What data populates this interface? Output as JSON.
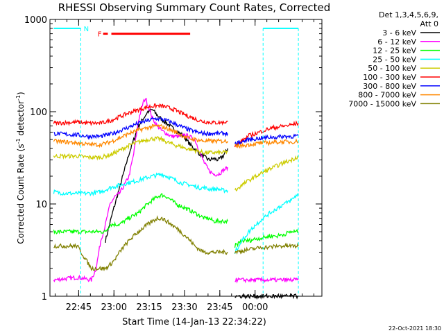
{
  "chart_data": {
    "type": "line",
    "title": "RHESSI Observing Summary Count Rates, Corrected",
    "xlabel": "Start Time (14-Jan-13 22:34:22)",
    "ylabel_parts": {
      "a": "Corrected Count Rate (s",
      "sup1": "-1",
      "b": " detector",
      "sup2": "-1",
      "c": ")"
    },
    "ylabel": "Corrected Count Rate (s-1 detector-1)",
    "y_scale": "log",
    "ylim": [
      1,
      1000
    ],
    "yticks": [
      "1",
      "10",
      "100",
      "1000"
    ],
    "xlim_minutes": [
      -1.6,
      114
    ],
    "xticks": [
      {
        "label": "22:45",
        "min": 10.6
      },
      {
        "label": "23:00",
        "min": 25.6
      },
      {
        "label": "23:15",
        "min": 40.6
      },
      {
        "label": "23:30",
        "min": 55.6
      },
      {
        "label": "23:45",
        "min": 70.6
      },
      {
        "label": "00:00",
        "min": 85.6
      }
    ],
    "legend_header": [
      "Det 1,3,4,5,6,9,",
      "Att 0"
    ],
    "legend_position": "right",
    "series": [
      {
        "name": "3 - 6 keV",
        "color": "#000000",
        "x": [
          0,
          10,
          20,
          22,
          25,
          28,
          32,
          36,
          40,
          42,
          44,
          46,
          48,
          50,
          52,
          55,
          58,
          62,
          66,
          68,
          70,
          72,
          74,
          75,
          76,
          76.5
        ],
        "y": [
          null,
          null,
          null,
          4,
          8,
          15,
          35,
          70,
          100,
          105,
          92,
          82,
          75,
          68,
          62,
          55,
          44,
          35,
          30,
          31,
          30,
          33,
          40,
          null,
          null,
          null
        ]
      },
      {
        "name": "6 - 12 keV",
        "color": "#ff00ff",
        "x": [
          0,
          10,
          16,
          18,
          20,
          22,
          24,
          26,
          28,
          30,
          32,
          34,
          36,
          38,
          39,
          40,
          42,
          44,
          46,
          48,
          50,
          52,
          54,
          56,
          58,
          60,
          62,
          64,
          66,
          68,
          70,
          72,
          74,
          75,
          76,
          76.5
        ],
        "y": [
          1.5,
          1.6,
          1.5,
          2,
          4,
          6,
          10,
          12,
          13,
          16,
          20,
          35,
          80,
          125,
          140,
          120,
          85,
          70,
          62,
          58,
          54,
          54,
          54,
          56,
          53,
          50,
          37,
          28,
          23,
          21,
          21,
          23,
          25,
          null,
          null,
          null
        ]
      },
      {
        "name": "12 - 25 keV",
        "color": "#00ff00",
        "x": [
          0,
          5,
          10,
          16,
          20,
          22,
          24,
          26,
          28,
          30,
          32,
          34,
          36,
          38,
          40,
          42,
          44,
          46,
          48,
          50,
          52,
          54,
          56,
          58,
          60,
          62,
          64,
          66,
          68,
          70,
          72,
          74,
          75,
          76,
          76.5
        ],
        "y": [
          5,
          5,
          5,
          5,
          5,
          5,
          6,
          6,
          6,
          6.5,
          7,
          7.5,
          8,
          9,
          10,
          11,
          12,
          12.5,
          12,
          11,
          10,
          9.5,
          9,
          8.5,
          8,
          7.5,
          7,
          7,
          6.5,
          6.5,
          6.5,
          6.5,
          null,
          null,
          null
        ]
      },
      {
        "name": "25 - 50 keV",
        "color": "#00ffff",
        "x": [
          0,
          5,
          10,
          15,
          20,
          24,
          28,
          32,
          36,
          40,
          42,
          44,
          46,
          48,
          50,
          52,
          54,
          56,
          58,
          60,
          62,
          64,
          66,
          68,
          70,
          72,
          74,
          75,
          76,
          76.5
        ],
        "y": [
          13.5,
          13,
          13,
          13,
          13.5,
          15,
          16,
          17,
          18,
          19.5,
          20,
          20.5,
          21,
          20,
          19,
          18,
          17,
          16.5,
          16,
          15.5,
          15,
          15,
          14.5,
          14.5,
          14.5,
          14,
          14,
          null,
          null,
          null
        ]
      },
      {
        "name": "50 - 100 keV",
        "color": "#cccc00",
        "x": [
          0,
          5,
          10,
          15,
          20,
          24,
          28,
          32,
          36,
          40,
          42,
          44,
          46,
          48,
          50,
          52,
          54,
          56,
          58,
          60,
          62,
          64,
          66,
          68,
          70,
          72,
          74,
          75,
          76,
          76.5
        ],
        "y": [
          33,
          33,
          33,
          32,
          32,
          34,
          38,
          43,
          47,
          50,
          51,
          51,
          50,
          47,
          45,
          43,
          42,
          40,
          39,
          38,
          37,
          36,
          36,
          36,
          36,
          36,
          37,
          null,
          null,
          null
        ]
      },
      {
        "name": "100 - 300 keV",
        "color": "#ff0000",
        "x": [
          0,
          5,
          10,
          15,
          20,
          24,
          28,
          32,
          36,
          40,
          42,
          44,
          46,
          48,
          50,
          52,
          54,
          56,
          58,
          60,
          62,
          64,
          66,
          68,
          70,
          72,
          74,
          75,
          76,
          76.5
        ],
        "y": [
          75,
          76,
          77,
          75,
          75,
          80,
          88,
          97,
          105,
          112,
          115,
          116,
          115,
          112,
          108,
          103,
          97,
          92,
          88,
          84,
          80,
          78,
          77,
          76,
          76,
          77,
          78,
          null,
          null,
          null
        ]
      },
      {
        "name": "300 - 800 keV",
        "color": "#0000ff",
        "x": [
          0,
          5,
          10,
          15,
          20,
          24,
          28,
          32,
          36,
          40,
          42,
          44,
          46,
          48,
          50,
          52,
          54,
          56,
          58,
          60,
          62,
          64,
          66,
          68,
          70,
          72,
          74,
          75,
          76,
          76.5
        ],
        "y": [
          58,
          57,
          56,
          54,
          54,
          57,
          62,
          68,
          75,
          80,
          83,
          84,
          83,
          80,
          77,
          73,
          69,
          66,
          63,
          61,
          59,
          58,
          58,
          58,
          58,
          58,
          58,
          null,
          null,
          null
        ]
      },
      {
        "name": "800 - 7000 keV",
        "color": "#ff8800",
        "x": [
          0,
          5,
          10,
          15,
          20,
          24,
          28,
          32,
          36,
          40,
          42,
          44,
          46,
          48,
          50,
          52,
          54,
          56,
          58,
          60,
          62,
          64,
          66,
          68,
          70,
          72,
          74,
          75,
          76,
          76.5
        ],
        "y": [
          48,
          47,
          46,
          44,
          44,
          47,
          52,
          58,
          63,
          67,
          69,
          70,
          69,
          66,
          63,
          60,
          56,
          53,
          51,
          50,
          49,
          48,
          48,
          48,
          48,
          48,
          48,
          null,
          null,
          null
        ]
      },
      {
        "name": "7000 - 15000 keV",
        "color": "#808000",
        "x": [
          0,
          5,
          10,
          16,
          20,
          22,
          24,
          26,
          28,
          30,
          32,
          34,
          36,
          38,
          40,
          42,
          44,
          46,
          48,
          50,
          52,
          54,
          56,
          58,
          60,
          62,
          64,
          66,
          68,
          70,
          72,
          74,
          75,
          76,
          76.5
        ],
        "y": [
          3.5,
          3.5,
          3.5,
          2,
          2,
          2,
          2.2,
          2.5,
          3,
          3.5,
          4,
          4.5,
          5,
          5.5,
          6,
          6.5,
          7,
          7,
          6.5,
          6,
          5.5,
          5,
          4.5,
          4,
          3.5,
          3.2,
          3,
          3,
          3,
          3,
          3,
          3,
          null,
          null,
          null
        ]
      }
    ],
    "series_after_gap": {
      "x": [
        77,
        80,
        83,
        86,
        89,
        92,
        95,
        98,
        101,
        104
      ],
      "y": [
        [
          1,
          1,
          1,
          1,
          1,
          1,
          1,
          1,
          1,
          1
        ],
        [
          1.5,
          1.5,
          1.5,
          1.5,
          1.5,
          1.5,
          1.5,
          1.5,
          1.5,
          1.5
        ],
        [
          3.5,
          4,
          4,
          4.2,
          4.3,
          4.5,
          4.5,
          4.7,
          5,
          5
        ],
        [
          3,
          4,
          5,
          6,
          7,
          8,
          9,
          10,
          11,
          13
        ],
        [
          14,
          16,
          18,
          20,
          22,
          24,
          26,
          28,
          30,
          33
        ],
        [
          42,
          48,
          55,
          58,
          62,
          66,
          68,
          70,
          72,
          75
        ],
        [
          45,
          47,
          50,
          51,
          52,
          53,
          53,
          54,
          54,
          55
        ],
        [
          42,
          43,
          44,
          45,
          46,
          46,
          47,
          47,
          47,
          48
        ],
        [
          3,
          3.1,
          3.2,
          3.3,
          3.4,
          3.4,
          3.5,
          3.5,
          3.5,
          3.5
        ]
      ]
    },
    "flags": [
      {
        "label": "N",
        "color": "#00ffff",
        "y": 800,
        "segments": [
          [
            0,
            11.5
          ],
          [
            89,
            104
          ]
        ],
        "dashed_edges": [
          11.5,
          89,
          104
        ]
      },
      {
        "label": "F",
        "color": "#ff0000",
        "y": 700,
        "segments": [
          [
            21,
            23
          ],
          [
            24.5,
            58
          ]
        ]
      }
    ],
    "footer": "22-Oct-2021 18:30"
  }
}
